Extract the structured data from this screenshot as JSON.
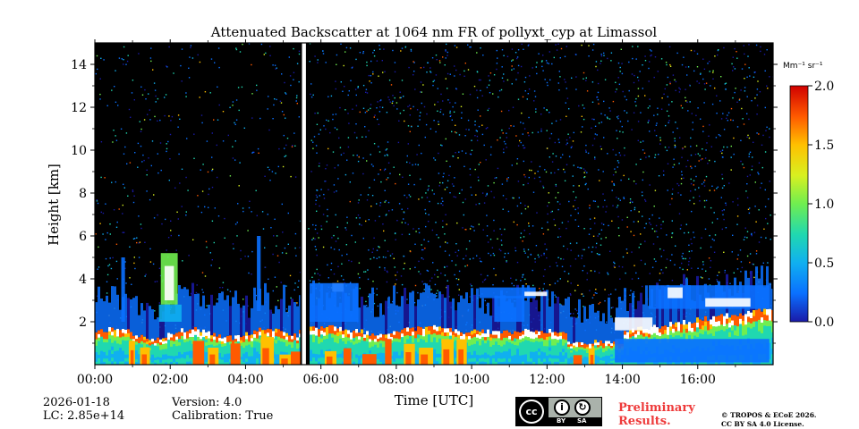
{
  "chart_data": {
    "type": "heatmap",
    "title": "Attenuated Backscatter at 1064 nm FR of pollyxt_cyp at Limassol",
    "xlabel": "Time [UTC]",
    "ylabel": "Height [km]",
    "xlim_hours": [
      0,
      18
    ],
    "ylim_km": [
      0,
      15
    ],
    "xticks": [
      {
        "value": 0,
        "label": "00:00"
      },
      {
        "value": 2,
        "label": "02:00"
      },
      {
        "value": 4,
        "label": "04:00"
      },
      {
        "value": 6,
        "label": "06:00"
      },
      {
        "value": 8,
        "label": "08:00"
      },
      {
        "value": 10,
        "label": "10:00"
      },
      {
        "value": 12,
        "label": "12:00"
      },
      {
        "value": 14,
        "label": "14:00"
      },
      {
        "value": 16,
        "label": "16:00"
      }
    ],
    "yticks": [
      {
        "value": 2,
        "label": "2"
      },
      {
        "value": 4,
        "label": "4"
      },
      {
        "value": 6,
        "label": "6"
      },
      {
        "value": 8,
        "label": "8"
      },
      {
        "value": 10,
        "label": "10"
      },
      {
        "value": 12,
        "label": "12"
      },
      {
        "value": 14,
        "label": "14"
      }
    ],
    "colorbar": {
      "unit": "Mm⁻¹ sr⁻¹",
      "range": [
        0.0,
        2.0
      ],
      "ticks": [
        {
          "value": 0.0,
          "label": "0.0"
        },
        {
          "value": 0.5,
          "label": "0.5"
        },
        {
          "value": 1.0,
          "label": "1.0"
        },
        {
          "value": 1.5,
          "label": "1.5"
        },
        {
          "value": 2.0,
          "label": "2.0"
        }
      ],
      "colors": [
        "#1a1aa8",
        "#0a70ff",
        "#10b0f0",
        "#20d8b0",
        "#70ee50",
        "#d8f020",
        "#ffc000",
        "#ff5a00",
        "#d00000"
      ]
    },
    "no_data_gap_hours": [
      5.45,
      5.65
    ],
    "layers": [
      {
        "name": "boundary layer (high backscatter)",
        "height_top_km": [
          0.3,
          1.8
        ]
      },
      {
        "name": "aerosol layer",
        "height_range_km": [
          1.5,
          4.0
        ]
      },
      {
        "name": "plume near 02:00",
        "time_h": 1.9,
        "height_range_km": [
          2.8,
          5.2
        ]
      },
      {
        "name": "layer 14:00-18:00",
        "height_range_km": [
          1.5,
          3.8
        ]
      }
    ]
  },
  "footer": {
    "date": "2026-01-18",
    "lc": "LC: 2.85e+14",
    "version": "Version: 4.0",
    "calibration": "Calibration: True",
    "preliminary": [
      "Preliminary",
      "Results."
    ],
    "copyright": [
      "© TROPOS & ECoE 2026.",
      "CC BY SA 4.0 License."
    ],
    "cc_badge": {
      "cc": "cc",
      "by": "BY",
      "sa": "SA",
      "by_icon": "attribution-person-icon",
      "sa_icon": "share-alike-icon"
    }
  }
}
